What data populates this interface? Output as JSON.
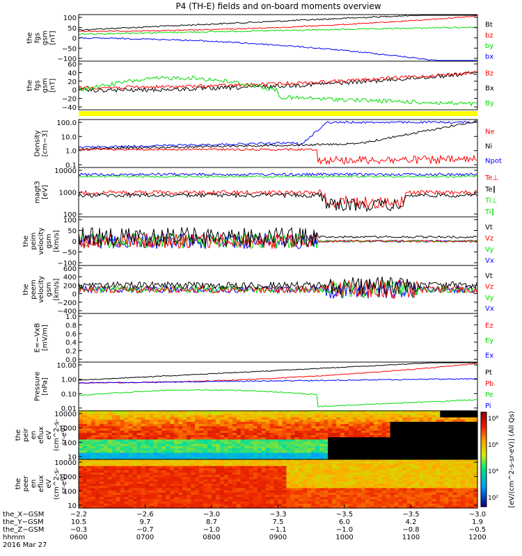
{
  "title": "P4 (TH-E) fields and on-board moments overview",
  "colors": {
    "black": "#000000",
    "red": "#ff0000",
    "green": "#00dd00",
    "blue": "#0000ff",
    "yellow": "#ffff00"
  },
  "chart_data": [
    {
      "type": "line",
      "ylabel": [
        "the",
        "fgs",
        "gsm",
        "[nT]"
      ],
      "yticks": [
        "100",
        "50",
        "0",
        "−50",
        "−100"
      ],
      "series": [
        {
          "name": "Bt",
          "color": "black"
        },
        {
          "name": "bz",
          "color": "red"
        },
        {
          "name": "by",
          "color": "green"
        },
        {
          "name": "bx",
          "color": "blue"
        }
      ]
    },
    {
      "type": "line",
      "ylabel": [
        "the",
        "fgs",
        "gsm",
        "[nT]"
      ],
      "yticks": [
        "60",
        "40",
        "20",
        "0",
        "−20",
        "−40"
      ],
      "series": [
        {
          "name": "Bz",
          "color": "red"
        },
        {
          "name": "Bx",
          "color": "black"
        },
        {
          "name": "By",
          "color": "green"
        }
      ]
    },
    {
      "type": "line",
      "ylabel": [
        "Density",
        "[cm−3]"
      ],
      "yticks": [
        "100.0",
        "10.0",
        "1.0",
        "0.1"
      ],
      "series": [
        {
          "name": "Ne",
          "color": "red"
        },
        {
          "name": "Ni",
          "color": "black"
        },
        {
          "name": "Npot",
          "color": "blue"
        }
      ]
    },
    {
      "type": "line",
      "ylabel": [
        "magt3",
        "[eV]"
      ],
      "yticks": [
        "10000",
        "1000",
        "100"
      ],
      "series": [
        {
          "name": "Te⊥",
          "color": "red"
        },
        {
          "name": "Te∥",
          "color": "black"
        },
        {
          "name": "Ti⊥",
          "color": "green"
        },
        {
          "name": "Ti∥",
          "color": "green"
        }
      ]
    },
    {
      "type": "line",
      "ylabel": [
        "the",
        "peim",
        "velocity",
        "gsm",
        "[km/s]"
      ],
      "yticks": [
        "100",
        "50",
        "0",
        "−50",
        "−100"
      ],
      "series": [
        {
          "name": "Vt",
          "color": "black"
        },
        {
          "name": "Vz",
          "color": "red"
        },
        {
          "name": "Vy",
          "color": "green"
        },
        {
          "name": "Vx",
          "color": "blue"
        }
      ]
    },
    {
      "type": "line",
      "ylabel": [
        "the",
        "peem",
        "velocity",
        "gsm",
        "[km/s]"
      ],
      "yticks": [
        "600",
        "400",
        "200",
        "0",
        "−200",
        "−400"
      ],
      "series": [
        {
          "name": "Vt",
          "color": "black"
        },
        {
          "name": "Vz",
          "color": "red"
        },
        {
          "name": "Vy",
          "color": "green"
        },
        {
          "name": "Vx",
          "color": "blue"
        }
      ]
    },
    {
      "type": "line",
      "ylabel": [
        "E=−VxB",
        "[mV/m]"
      ],
      "yticks": [
        "1.0",
        "0.8",
        "0.6",
        "0.4",
        "0.2",
        "0.0"
      ],
      "series": [
        {
          "name": "Ez",
          "color": "red"
        },
        {
          "name": "Ey",
          "color": "green"
        },
        {
          "name": "Ex",
          "color": "blue"
        }
      ]
    },
    {
      "type": "line",
      "ylabel": [
        "Pressure",
        "[nPa]"
      ],
      "yticks": [
        "10.00",
        "1.00",
        "0.10",
        "0.01"
      ],
      "series": [
        {
          "name": "Pt",
          "color": "black"
        },
        {
          "name": "Pb",
          "color": "red"
        },
        {
          "name": "Pe",
          "color": "green"
        },
        {
          "name": "Pi",
          "color": "blue"
        }
      ]
    },
    {
      "type": "heatmap",
      "ylabel": [
        "the",
        "peir",
        "en",
        "eflux",
        "eV",
        "(cm^2-s-",
        "sr-eV)"
      ],
      "yticks": [
        "10000",
        "1000",
        "100",
        "10"
      ]
    },
    {
      "type": "heatmap",
      "ylabel": [
        "the",
        "peer",
        "en",
        "eflux",
        "eV",
        "(cm^2-s-",
        "sr-eV)"
      ],
      "yticks": [
        "10000",
        "1000",
        "100",
        "10"
      ]
    }
  ],
  "colorbar": {
    "ticks": [
      "10⁸",
      "10⁶",
      "10⁴",
      "10²"
    ],
    "label": "[eV/(cm^2-s-sr-eV)] (All Qs)"
  },
  "xaxis": {
    "row_labels": [
      "the_X−GSM",
      "the_Y−GSM",
      "the_Z−GSM",
      "hhmm",
      "2016 Mar 27"
    ],
    "columns": [
      [
        "−2.2",
        "10.5",
        "−0.3",
        "0600"
      ],
      [
        "−2.6",
        "9.7",
        "−0.7",
        "0700"
      ],
      [
        "−3.0",
        "8.7",
        "−1.0",
        "0800"
      ],
      [
        "−3.3",
        "7.5",
        "−1.1",
        "0900"
      ],
      [
        "−3.5",
        "6.0",
        "−1.0",
        "1000"
      ],
      [
        "−3.5",
        "4.2",
        "−0.8",
        "1100"
      ],
      [
        "−3.0",
        "1.9",
        "−0.5",
        "1200"
      ]
    ]
  }
}
